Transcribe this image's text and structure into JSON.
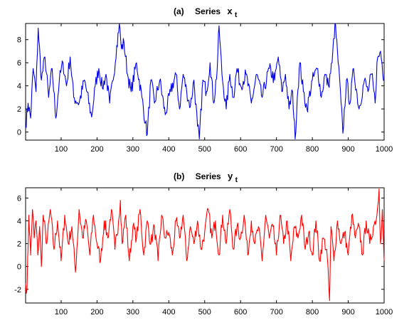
{
  "panels": [
    {
      "title_prefix": "(a)",
      "title_word": "Series",
      "title_var": "x",
      "title_sub": "t"
    },
    {
      "title_prefix": "(b)",
      "title_word": "Series",
      "title_var": "y",
      "title_sub": "t"
    }
  ],
  "chart_data": [
    {
      "type": "line",
      "title": "(a) Series x_t",
      "xlim": [
        1,
        1000
      ],
      "ylim": [
        -0.7,
        9.4
      ],
      "xticks": [
        100,
        200,
        300,
        400,
        500,
        600,
        700,
        800,
        900,
        1000
      ],
      "yticks": [
        0,
        2,
        4,
        6,
        8
      ],
      "color": "#0000e6",
      "series_note": "1000-point time series; control points approximate the visible path",
      "series": [
        {
          "x": [
            1,
            8,
            15,
            22,
            30,
            36,
            45,
            55,
            65,
            75,
            85,
            95,
            105,
            115,
            125,
            135,
            150,
            165,
            185,
            195,
            205,
            215,
            225,
            235,
            245,
            255,
            262,
            268,
            275,
            285,
            295,
            310,
            325,
            335,
            340,
            350,
            360,
            375,
            390,
            405,
            420,
            430,
            440,
            450,
            460,
            470,
            480,
            485,
            495,
            505,
            515,
            525,
            535,
            540,
            548,
            560,
            570,
            580,
            590,
            600,
            615,
            630,
            645,
            660,
            680,
            695,
            705,
            715,
            725,
            735,
            745,
            752,
            758,
            765,
            775,
            785,
            800,
            815,
            825,
            835,
            845,
            855,
            863,
            870,
            880,
            885,
            895,
            905,
            915,
            930,
            945,
            955,
            965,
            975,
            980,
            990,
            1000
          ],
          "y": [
            0.5,
            2.5,
            1.2,
            5.5,
            3.5,
            9.0,
            4.5,
            6.5,
            3.0,
            5.5,
            1.2,
            4.5,
            6.0,
            4.0,
            6.5,
            3.0,
            2.5,
            4.5,
            1.3,
            4.0,
            5.5,
            3.8,
            5.0,
            2.5,
            4.5,
            7.5,
            9.4,
            7.2,
            7.8,
            5.0,
            3.5,
            6.0,
            3.0,
            0.8,
            -0.2,
            4.5,
            2.5,
            4.5,
            1.5,
            3.5,
            5.0,
            2.0,
            5.0,
            3.5,
            2.2,
            4.5,
            0.5,
            -0.6,
            4.5,
            3.5,
            6.0,
            2.5,
            5.5,
            9.2,
            5.0,
            2.0,
            5.0,
            3.0,
            5.5,
            4.0,
            5.0,
            2.5,
            5.0,
            3.0,
            5.5,
            4.5,
            6.5,
            3.5,
            5.0,
            2.0,
            3.5,
            -0.6,
            3.0,
            6.0,
            3.5,
            2.0,
            4.5,
            5.5,
            3.0,
            5.0,
            4.0,
            6.0,
            9.4,
            7.0,
            2.5,
            -0.1,
            4.5,
            2.5,
            5.5,
            2.0,
            4.5,
            3.5,
            5.0,
            2.5,
            6.0,
            7.0,
            4.5
          ]
        }
      ]
    },
    {
      "type": "line",
      "title": "(b) Series y_t",
      "xlim": [
        1,
        1000
      ],
      "ylim": [
        -3.2,
        6.9
      ],
      "xticks": [
        100,
        200,
        300,
        400,
        500,
        600,
        700,
        800,
        900,
        1000
      ],
      "yticks": [
        -2,
        0,
        2,
        4,
        6
      ],
      "color": "#ff0000",
      "series_note": "1000-point noisy series; control points approximate the visible path",
      "series": [
        {
          "x": [
            1,
            5,
            10,
            15,
            20,
            25,
            30,
            35,
            40,
            45,
            50,
            60,
            70,
            80,
            90,
            100,
            110,
            120,
            130,
            140,
            150,
            160,
            170,
            180,
            190,
            200,
            210,
            220,
            230,
            240,
            250,
            260,
            265,
            270,
            280,
            290,
            300,
            310,
            320,
            330,
            340,
            350,
            360,
            370,
            380,
            390,
            400,
            410,
            420,
            430,
            440,
            450,
            460,
            470,
            480,
            490,
            500,
            510,
            520,
            530,
            540,
            550,
            560,
            570,
            580,
            590,
            600,
            610,
            620,
            630,
            640,
            650,
            660,
            670,
            680,
            690,
            700,
            710,
            720,
            730,
            740,
            750,
            760,
            770,
            780,
            790,
            800,
            810,
            820,
            830,
            840,
            848,
            852,
            860,
            870,
            880,
            890,
            900,
            910,
            920,
            930,
            940,
            950,
            960,
            970,
            980,
            986,
            990,
            995,
            1000
          ],
          "y": [
            -1.5,
            -2.0,
            4.5,
            1.0,
            5.0,
            2.5,
            4.0,
            1.0,
            3.5,
            0.0,
            4.5,
            2.0,
            5.0,
            1.5,
            4.0,
            0.5,
            4.5,
            2.0,
            3.5,
            -0.5,
            5.0,
            2.5,
            4.0,
            1.0,
            4.5,
            2.0,
            0.5,
            4.0,
            2.5,
            5.0,
            1.5,
            4.0,
            5.8,
            2.0,
            4.5,
            0.5,
            3.5,
            2.5,
            5.0,
            1.0,
            4.0,
            2.0,
            3.5,
            0.5,
            4.5,
            2.5,
            3.0,
            1.0,
            4.0,
            2.5,
            4.5,
            0.5,
            3.5,
            2.0,
            4.0,
            1.5,
            3.0,
            5.0,
            2.5,
            4.0,
            1.0,
            4.5,
            2.0,
            5.0,
            1.5,
            3.5,
            2.5,
            4.5,
            1.0,
            4.0,
            2.0,
            3.5,
            0.5,
            4.5,
            2.5,
            3.5,
            1.0,
            4.5,
            2.0,
            4.0,
            0.5,
            3.5,
            2.5,
            4.5,
            1.5,
            3.0,
            1.0,
            4.0,
            0.5,
            2.5,
            1.5,
            -3.0,
            3.5,
            0.5,
            4.0,
            2.0,
            3.0,
            1.0,
            4.5,
            2.5,
            3.5,
            1.0,
            4.0,
            2.0,
            3.5,
            4.5,
            6.8,
            2.0,
            5.0,
            0.5
          ]
        }
      ]
    }
  ]
}
